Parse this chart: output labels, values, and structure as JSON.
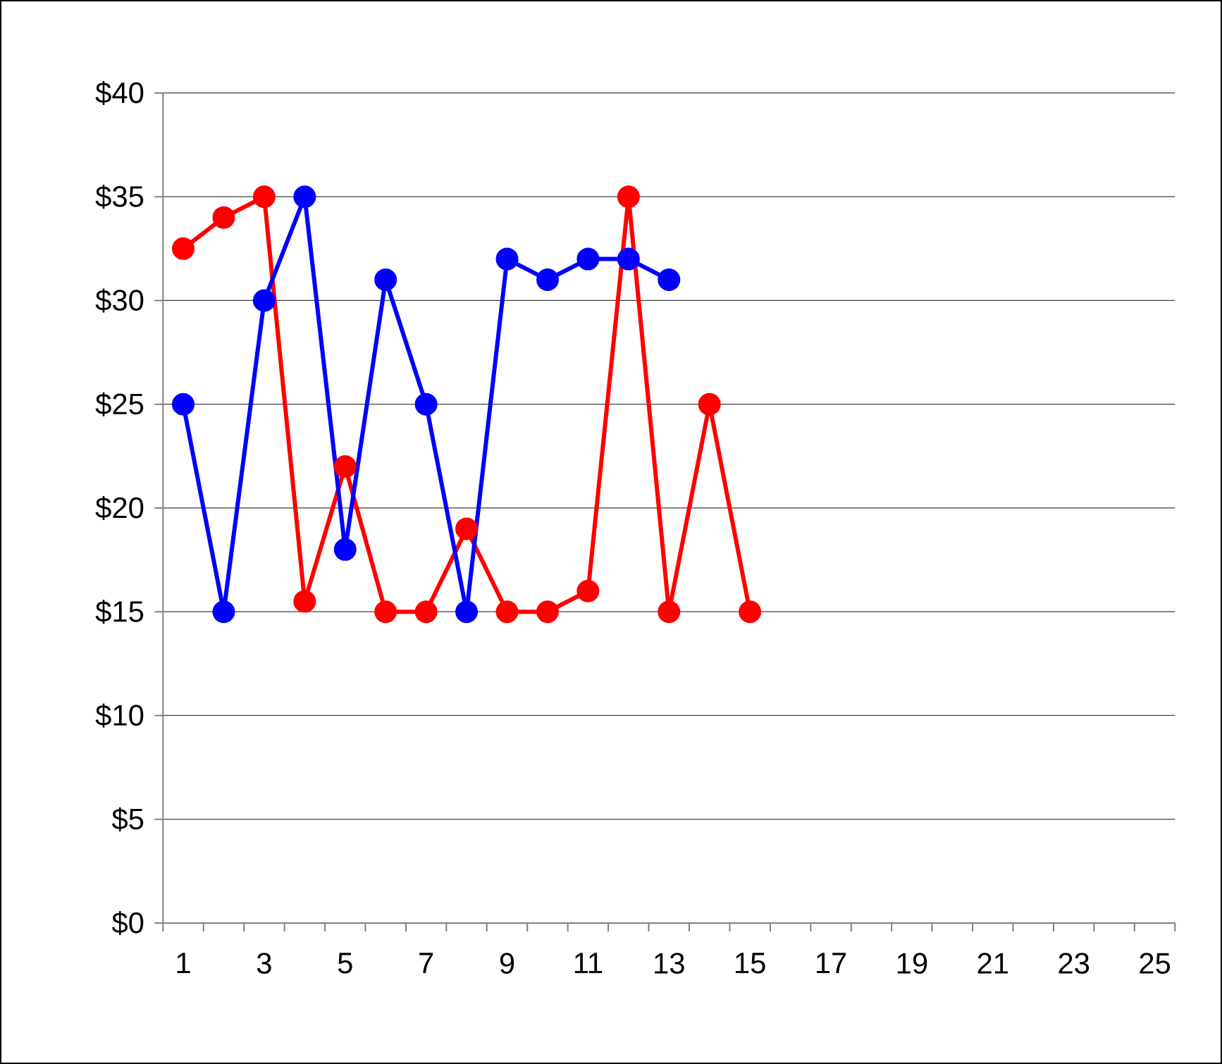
{
  "chart_data": {
    "type": "line",
    "categories": [
      "1",
      null,
      "3",
      null,
      "5",
      null,
      "7",
      null,
      "9",
      null,
      "11",
      null,
      "13",
      null,
      "15",
      null,
      "17",
      null,
      "19",
      null,
      "21",
      null,
      "23",
      null,
      "25"
    ],
    "series": [
      {
        "color": "#ff0000",
        "values": [
          32.5,
          34,
          35,
          15.5,
          22,
          15,
          15,
          19,
          15,
          15,
          16,
          35,
          15,
          25,
          15,
          null,
          null,
          null,
          null,
          null,
          null,
          null,
          null,
          null,
          null
        ]
      },
      {
        "color": "#0000ff",
        "values": [
          25,
          15,
          30,
          35,
          18,
          31,
          25,
          15,
          32,
          31,
          32,
          32,
          31,
          null,
          null,
          null,
          null,
          null,
          null,
          null,
          null,
          null,
          null,
          null,
          null
        ]
      }
    ],
    "ylim": [
      0,
      40
    ],
    "yticks": [
      {
        "value": 0,
        "label": "$0"
      },
      {
        "value": 5,
        "label": "$5"
      },
      {
        "value": 10,
        "label": "$10"
      },
      {
        "value": 15,
        "label": "$15"
      },
      {
        "value": 20,
        "label": "$20"
      },
      {
        "value": 25,
        "label": "$25"
      },
      {
        "value": 30,
        "label": "$30"
      },
      {
        "value": 35,
        "label": "$35"
      },
      {
        "value": 40,
        "label": "$40"
      }
    ],
    "grid": "y",
    "marker": "circle",
    "line_style": "solid"
  }
}
